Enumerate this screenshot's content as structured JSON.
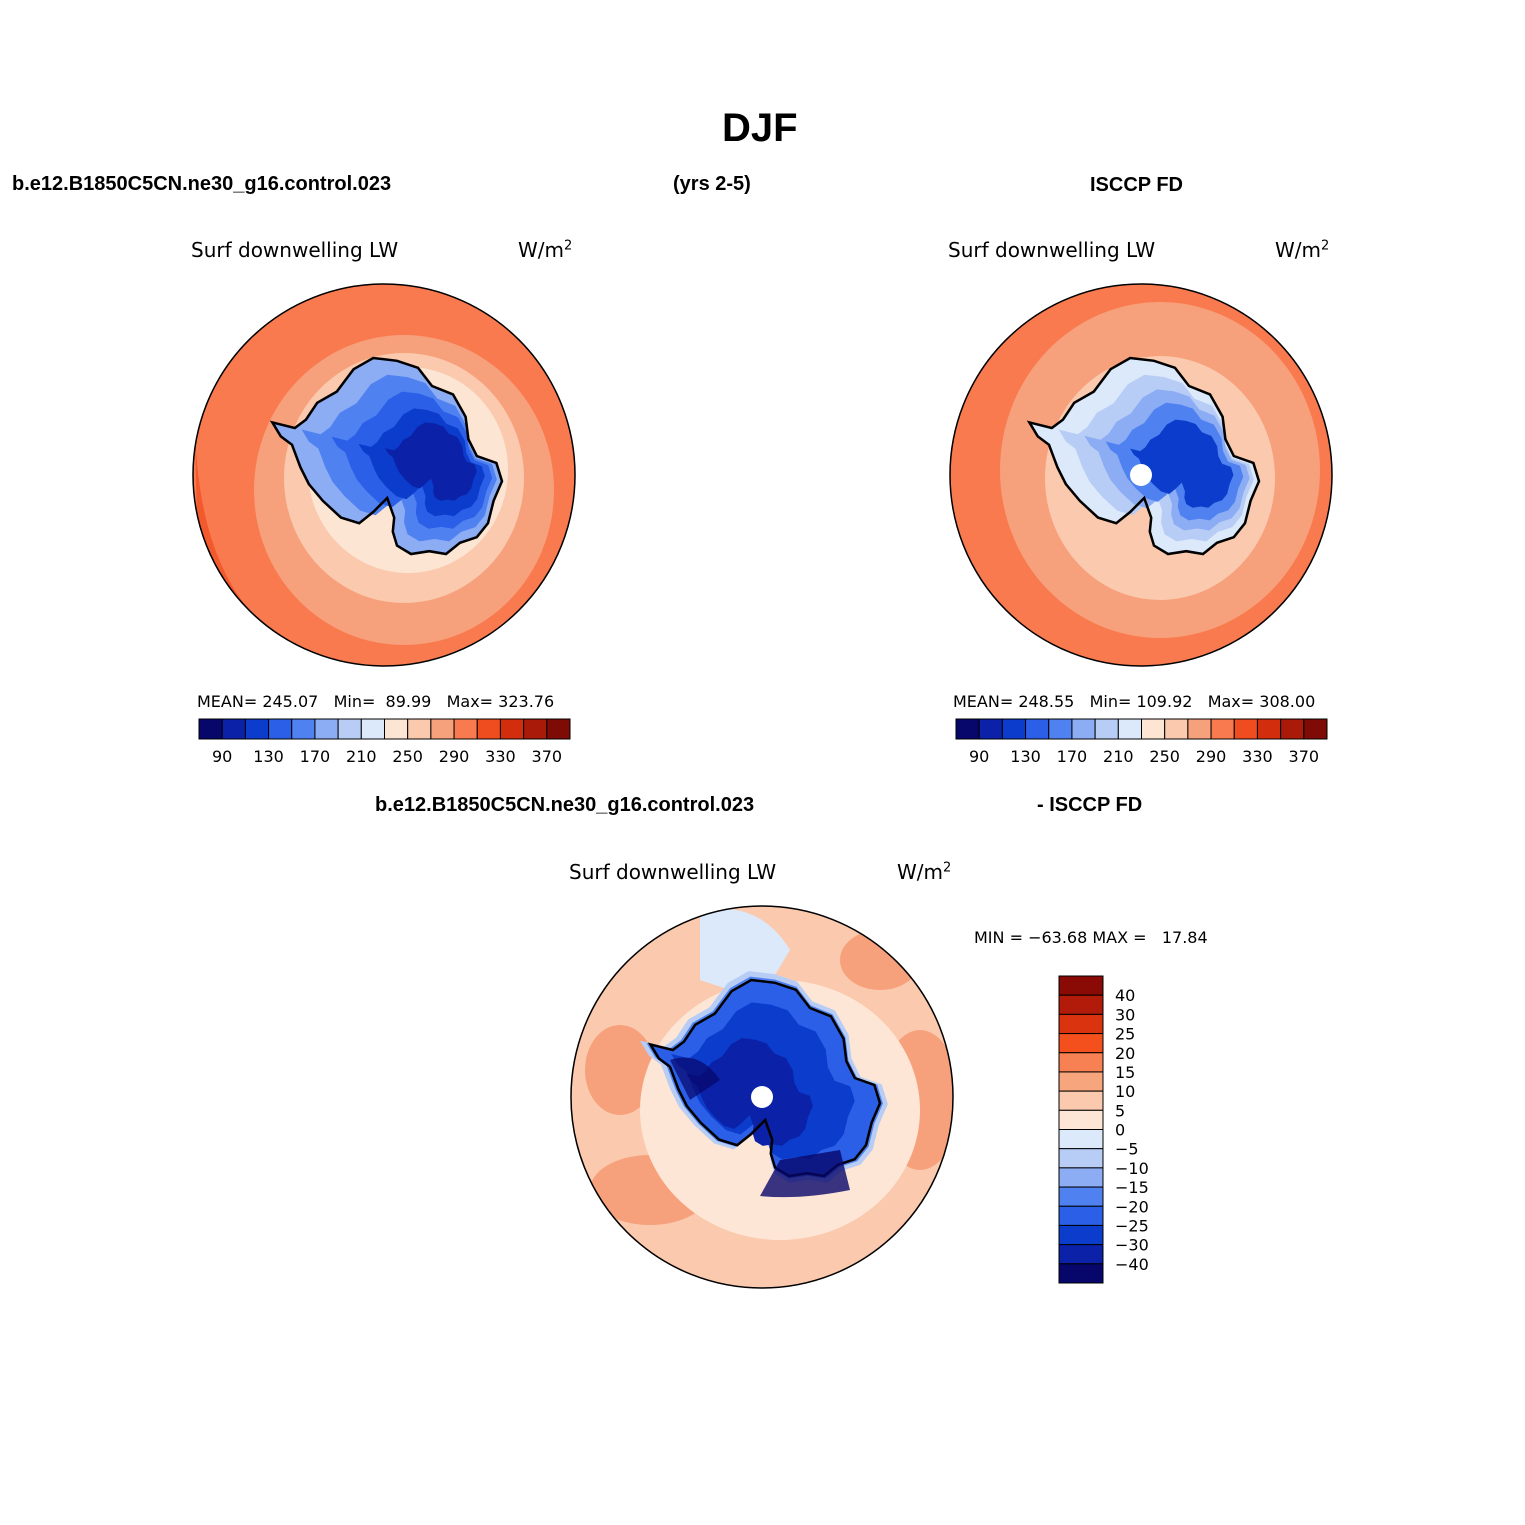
{
  "page": {
    "title": "DJF",
    "header_left": "b.e12.B1850C5CN.ne30_g16.control.023",
    "header_center": "(yrs 2-5)",
    "header_right": "ISCCP FD",
    "diff_header_left": "b.e12.B1850C5CN.ne30_g16.control.023",
    "diff_header_right": "- ISCCP FD"
  },
  "panels": {
    "model": {
      "variable": "Surf downwelling LW",
      "units": "W/m",
      "units_sup": "2",
      "stats": "MEAN= 245.07   Min=  89.99   Max= 323.76",
      "mean": 245.07,
      "min": 89.99,
      "max": 323.76
    },
    "obs": {
      "variable": "Surf downwelling LW",
      "units": "W/m",
      "units_sup": "2",
      "stats": "MEAN= 248.55   Min= 109.92   Max= 308.00",
      "mean": 248.55,
      "min": 109.92,
      "max": 308.0
    },
    "diff": {
      "variable": "Surf downwelling LW",
      "units": "W/m",
      "units_sup": "2",
      "stats": "MIN = −63.68 MAX =   17.84",
      "min": -63.68,
      "max": 17.84
    }
  },
  "colorbars": {
    "abs_labels": [
      "90",
      "130",
      "170",
      "210",
      "250",
      "290",
      "330",
      "370"
    ],
    "abs_colors": [
      "#07066a",
      "#0a21a8",
      "#0b3ccb",
      "#2c5fe8",
      "#4f82f0",
      "#8cacf4",
      "#b8cdf6",
      "#dbe9fa",
      "#fde5d4",
      "#fbc9ad",
      "#f7a07c",
      "#f87a4e",
      "#ef4c1f",
      "#d22d0d",
      "#a91a08",
      "#7e0b06"
    ],
    "diff_labels": [
      "40",
      "30",
      "25",
      "20",
      "15",
      "10",
      "5",
      "0",
      "−5",
      "−10",
      "−15",
      "−20",
      "−25",
      "−30",
      "−40"
    ],
    "diff_colors": [
      "#8a0b06",
      "#b21b0a",
      "#d9330f",
      "#f3501d",
      "#f78152",
      "#f7a57c",
      "#fbc9ad",
      "#fde6d6",
      "#dbe9fa",
      "#b8cdf6",
      "#8cacf4",
      "#4f82f0",
      "#2c5fe8",
      "#0b3ccb",
      "#0a21a8",
      "#07066a"
    ]
  },
  "colors": {
    "ocean_warm": "#f87a4e",
    "ocean_mid": "#f7a07c",
    "ocean_light": "#fbc9ad",
    "ice_dark": "#0b3ccb",
    "ice_deep": "#0a21a8"
  }
}
